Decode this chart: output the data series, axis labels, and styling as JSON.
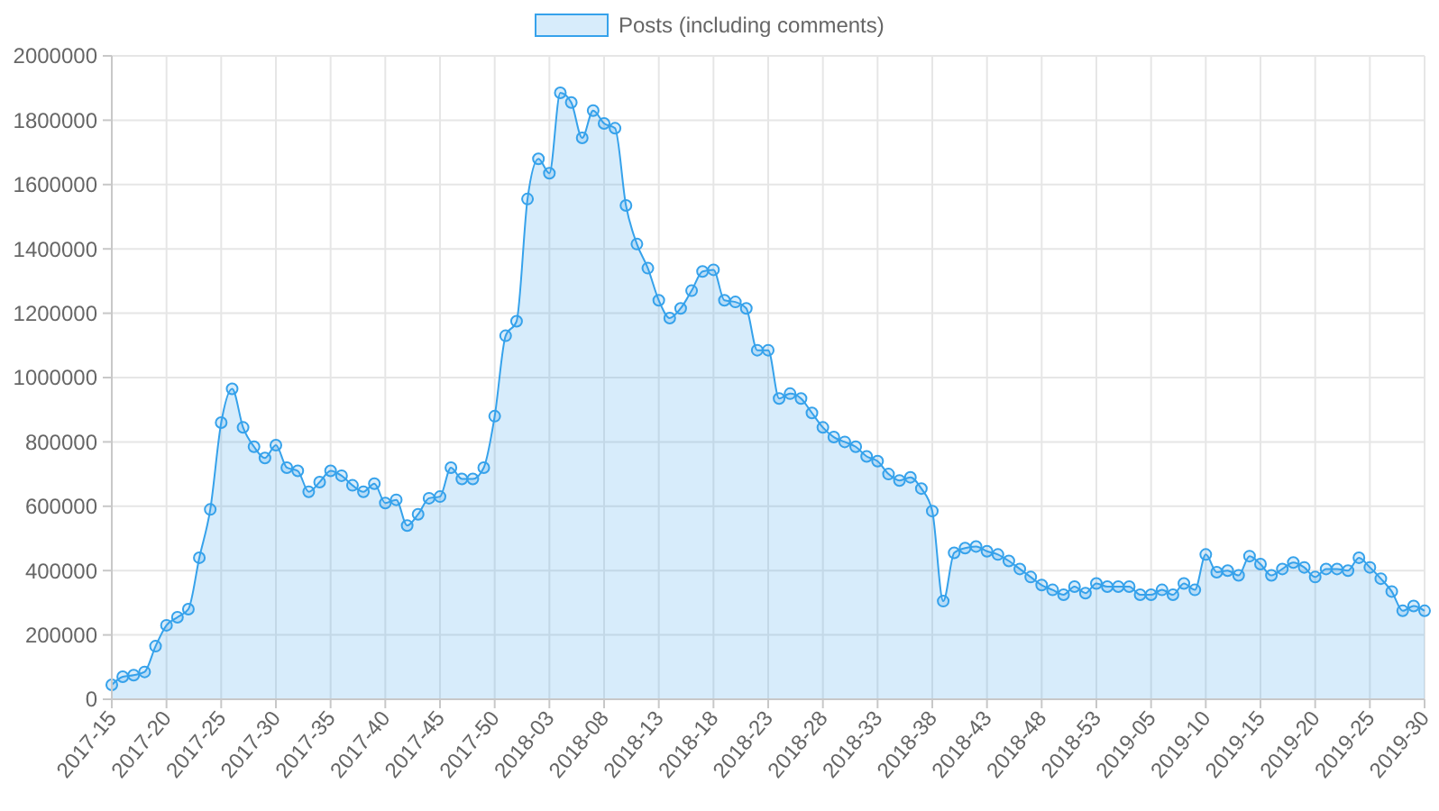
{
  "chart_data": {
    "type": "area",
    "categories": [
      "2017-15",
      null,
      null,
      null,
      null,
      "2017-20",
      null,
      null,
      null,
      null,
      "2017-25",
      null,
      null,
      null,
      null,
      "2017-30",
      null,
      null,
      null,
      null,
      "2017-35",
      null,
      null,
      null,
      null,
      "2017-40",
      null,
      null,
      null,
      null,
      "2017-45",
      null,
      null,
      null,
      null,
      "2017-50",
      null,
      null,
      null,
      null,
      "2018-03",
      null,
      null,
      null,
      null,
      "2018-08",
      null,
      null,
      null,
      null,
      "2018-13",
      null,
      null,
      null,
      null,
      "2018-18",
      null,
      null,
      null,
      null,
      "2018-23",
      null,
      null,
      null,
      null,
      "2018-28",
      null,
      null,
      null,
      null,
      "2018-33",
      null,
      null,
      null,
      null,
      "2018-38",
      null,
      null,
      null,
      null,
      "2018-43",
      null,
      null,
      null,
      null,
      "2018-48",
      null,
      null,
      null,
      null,
      "2018-53",
      null,
      null,
      null,
      null,
      "2019-05",
      null,
      null,
      null,
      null,
      "2019-10",
      null,
      null,
      null,
      null,
      "2019-15",
      null,
      null,
      null,
      null,
      "2019-20",
      null,
      null,
      null,
      null,
      "2019-25",
      null,
      null,
      null,
      null,
      "2019-30"
    ],
    "series": [
      {
        "name": "Posts (including comments)",
        "color": "#36a2eb",
        "values": [
          45000,
          70000,
          75000,
          85000,
          165000,
          230000,
          255000,
          280000,
          440000,
          590000,
          860000,
          965000,
          845000,
          785000,
          750000,
          790000,
          720000,
          710000,
          645000,
          675000,
          710000,
          695000,
          665000,
          645000,
          670000,
          610000,
          620000,
          540000,
          575000,
          625000,
          630000,
          720000,
          685000,
          685000,
          720000,
          880000,
          1130000,
          1175000,
          1555000,
          1680000,
          1635000,
          1885000,
          1855000,
          1745000,
          1830000,
          1790000,
          1775000,
          1535000,
          1415000,
          1340000,
          1240000,
          1185000,
          1215000,
          1270000,
          1330000,
          1335000,
          1240000,
          1235000,
          1215000,
          1085000,
          1085000,
          935000,
          950000,
          935000,
          890000,
          845000,
          815000,
          800000,
          785000,
          755000,
          740000,
          700000,
          680000,
          690000,
          655000,
          585000,
          305000,
          455000,
          470000,
          475000,
          460000,
          450000,
          430000,
          405000,
          380000,
          355000,
          340000,
          325000,
          350000,
          330000,
          360000,
          350000,
          350000,
          350000,
          325000,
          325000,
          340000,
          325000,
          360000,
          340000,
          450000,
          395000,
          400000,
          385000,
          445000,
          420000,
          385000,
          405000,
          425000,
          410000,
          380000,
          405000,
          405000,
          400000,
          440000,
          410000,
          375000,
          335000,
          275000,
          290000,
          275000
        ]
      }
    ],
    "ylim": [
      0,
      2000000
    ],
    "yticks": [
      0,
      200000,
      400000,
      600000,
      800000,
      1000000,
      1200000,
      1400000,
      1600000,
      1800000,
      2000000
    ],
    "grid": true,
    "legend": "top",
    "marker": "circle"
  }
}
